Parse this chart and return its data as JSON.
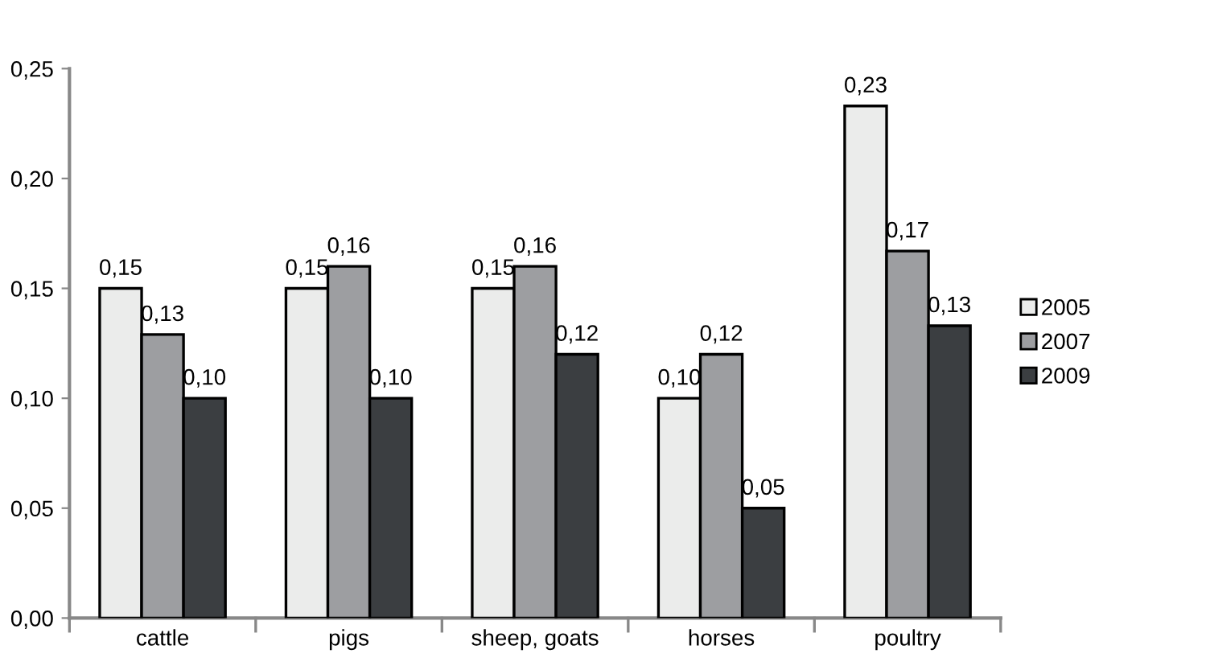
{
  "chart_data": {
    "type": "bar",
    "categories": [
      "cattle",
      "pigs",
      "sheep, goats",
      "horses",
      "poultry"
    ],
    "series": [
      {
        "name": "2005",
        "color": "#ebeceb",
        "values": [
          0.15,
          0.15,
          0.15,
          0.1,
          0.233
        ],
        "value_labels": [
          "0,15",
          "0,15",
          "0,15",
          "0,10",
          "0,23"
        ]
      },
      {
        "name": "2007",
        "color": "#9d9ea1",
        "values": [
          0.129,
          0.16,
          0.16,
          0.12,
          0.167
        ],
        "value_labels": [
          "0,13",
          "0,16",
          "0,16",
          "0,12",
          "0,17"
        ]
      },
      {
        "name": "2009",
        "color": "#3b3e41",
        "values": [
          0.1,
          0.1,
          0.12,
          0.05,
          0.133
        ],
        "value_labels": [
          "0,10",
          "0,10",
          "0,12",
          "0,05",
          "0,13"
        ]
      }
    ],
    "ylim": [
      0,
      0.25
    ],
    "yticks": [
      {
        "value": 0,
        "label": "0,00"
      },
      {
        "value": 0.05,
        "label": "0,05"
      },
      {
        "value": 0.1,
        "label": "0,10"
      },
      {
        "value": 0.15,
        "label": "0,15"
      },
      {
        "value": 0.2,
        "label": "0,20"
      },
      {
        "value": 0.25,
        "label": "0,25"
      }
    ],
    "grid": false,
    "legend": "right"
  }
}
